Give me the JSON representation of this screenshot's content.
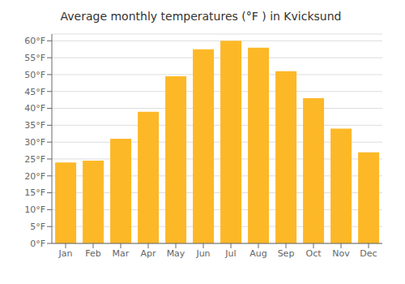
{
  "chart_data": {
    "type": "bar",
    "title": "Average monthly temperatures (°F ) in Kvicksund",
    "categories": [
      "Jan",
      "Feb",
      "Mar",
      "Apr",
      "May",
      "Jun",
      "Jul",
      "Aug",
      "Sep",
      "Oct",
      "Nov",
      "Dec"
    ],
    "values": [
      24.0,
      24.5,
      31.0,
      39.0,
      49.5,
      57.5,
      60.0,
      58.0,
      51.0,
      43.0,
      34.0,
      27.0
    ],
    "color": "#FDB827",
    "ylim": [
      0,
      62
    ],
    "yticks": [
      {
        "value": 0,
        "label": "0°F"
      },
      {
        "value": 5,
        "label": "5°F"
      },
      {
        "value": 10,
        "label": "10°F"
      },
      {
        "value": 15,
        "label": "15°F"
      },
      {
        "value": 20,
        "label": "20°F"
      },
      {
        "value": 25,
        "label": "25°F"
      },
      {
        "value": 30,
        "label": "30°F"
      },
      {
        "value": 35,
        "label": "35°F"
      },
      {
        "value": 40,
        "label": "40°F"
      },
      {
        "value": 45,
        "label": "45°F"
      },
      {
        "value": 50,
        "label": "50°F"
      },
      {
        "value": 55,
        "label": "55°F"
      },
      {
        "value": 60,
        "label": "60°F"
      }
    ],
    "grid": true
  }
}
